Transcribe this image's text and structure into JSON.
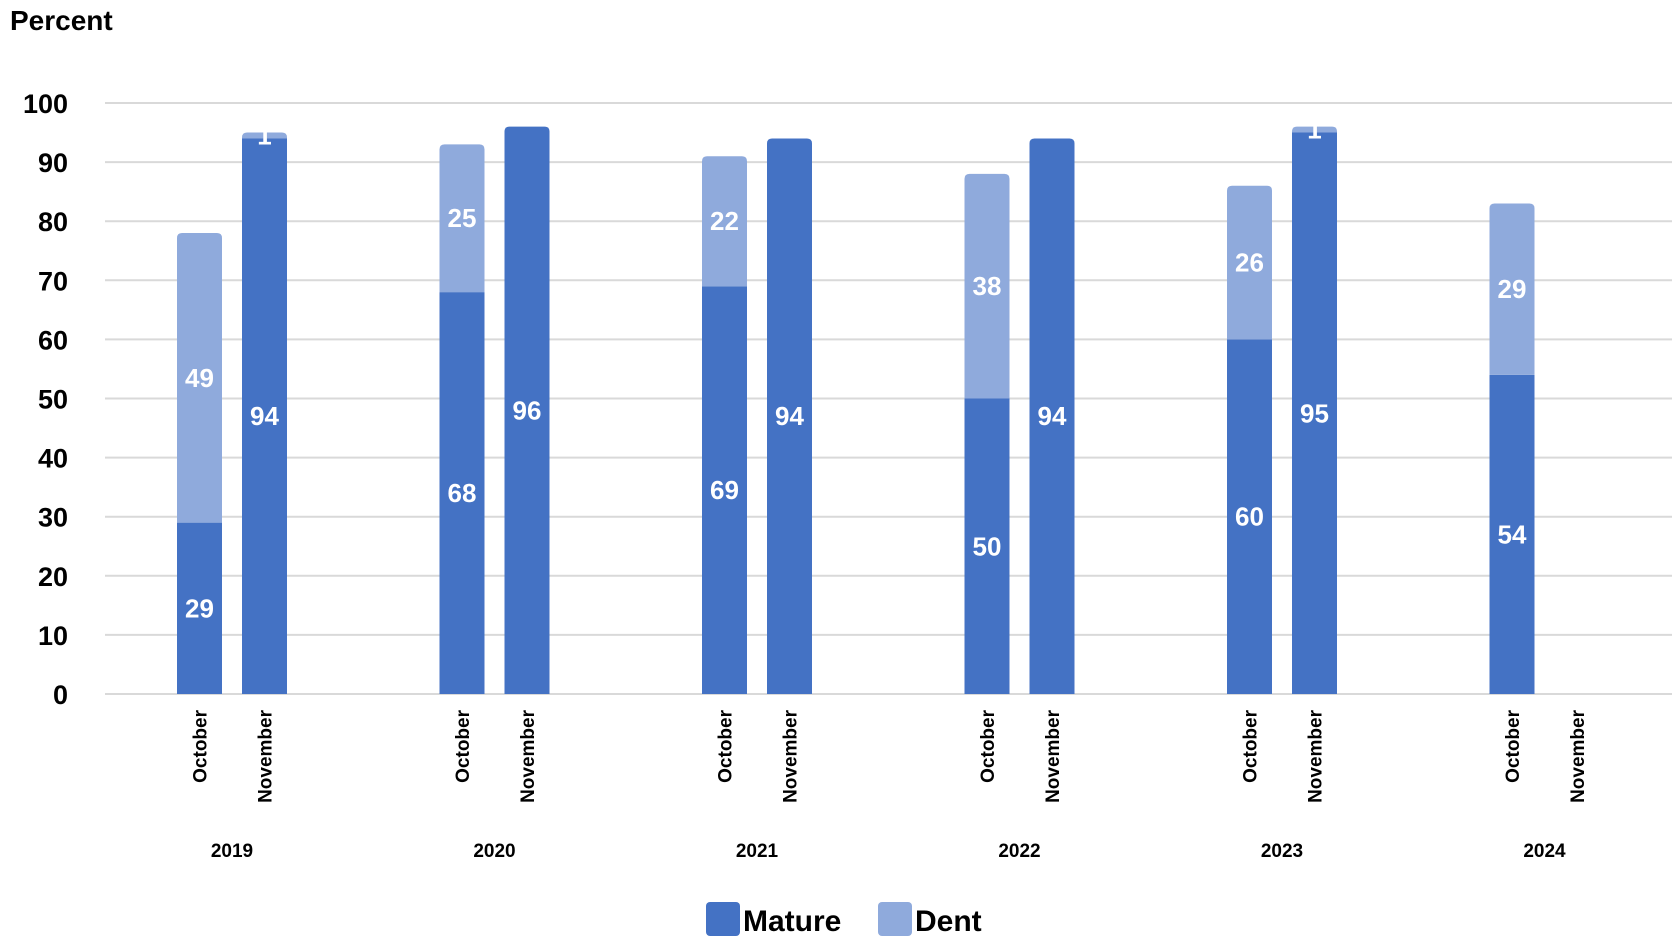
{
  "chart_data": {
    "type": "bar",
    "stacked": true,
    "ylabel": "Percent",
    "ylim": [
      0,
      100
    ],
    "yticks": [
      0,
      10,
      20,
      30,
      40,
      50,
      60,
      70,
      80,
      90,
      100
    ],
    "grid": true,
    "legend_position": "bottom",
    "groups": [
      {
        "year": "2019",
        "categories": [
          "October",
          "November"
        ]
      },
      {
        "year": "2020",
        "categories": [
          "October",
          "November"
        ]
      },
      {
        "year": "2021",
        "categories": [
          "October",
          "November"
        ]
      },
      {
        "year": "2022",
        "categories": [
          "October",
          "November"
        ]
      },
      {
        "year": "2023",
        "categories": [
          "October",
          "November"
        ]
      },
      {
        "year": "2024",
        "categories": [
          "October",
          "November"
        ]
      }
    ],
    "series": [
      {
        "name": "Mature",
        "color": "#4472c4",
        "values": [
          [
            29,
            94
          ],
          [
            68,
            96
          ],
          [
            69,
            94
          ],
          [
            50,
            94
          ],
          [
            60,
            95
          ],
          [
            54,
            null
          ]
        ]
      },
      {
        "name": "Dent",
        "color": "#8faadc",
        "values": [
          [
            49,
            1
          ],
          [
            25,
            null
          ],
          [
            22,
            null
          ],
          [
            38,
            null
          ],
          [
            26,
            1
          ],
          [
            29,
            null
          ]
        ]
      }
    ]
  }
}
